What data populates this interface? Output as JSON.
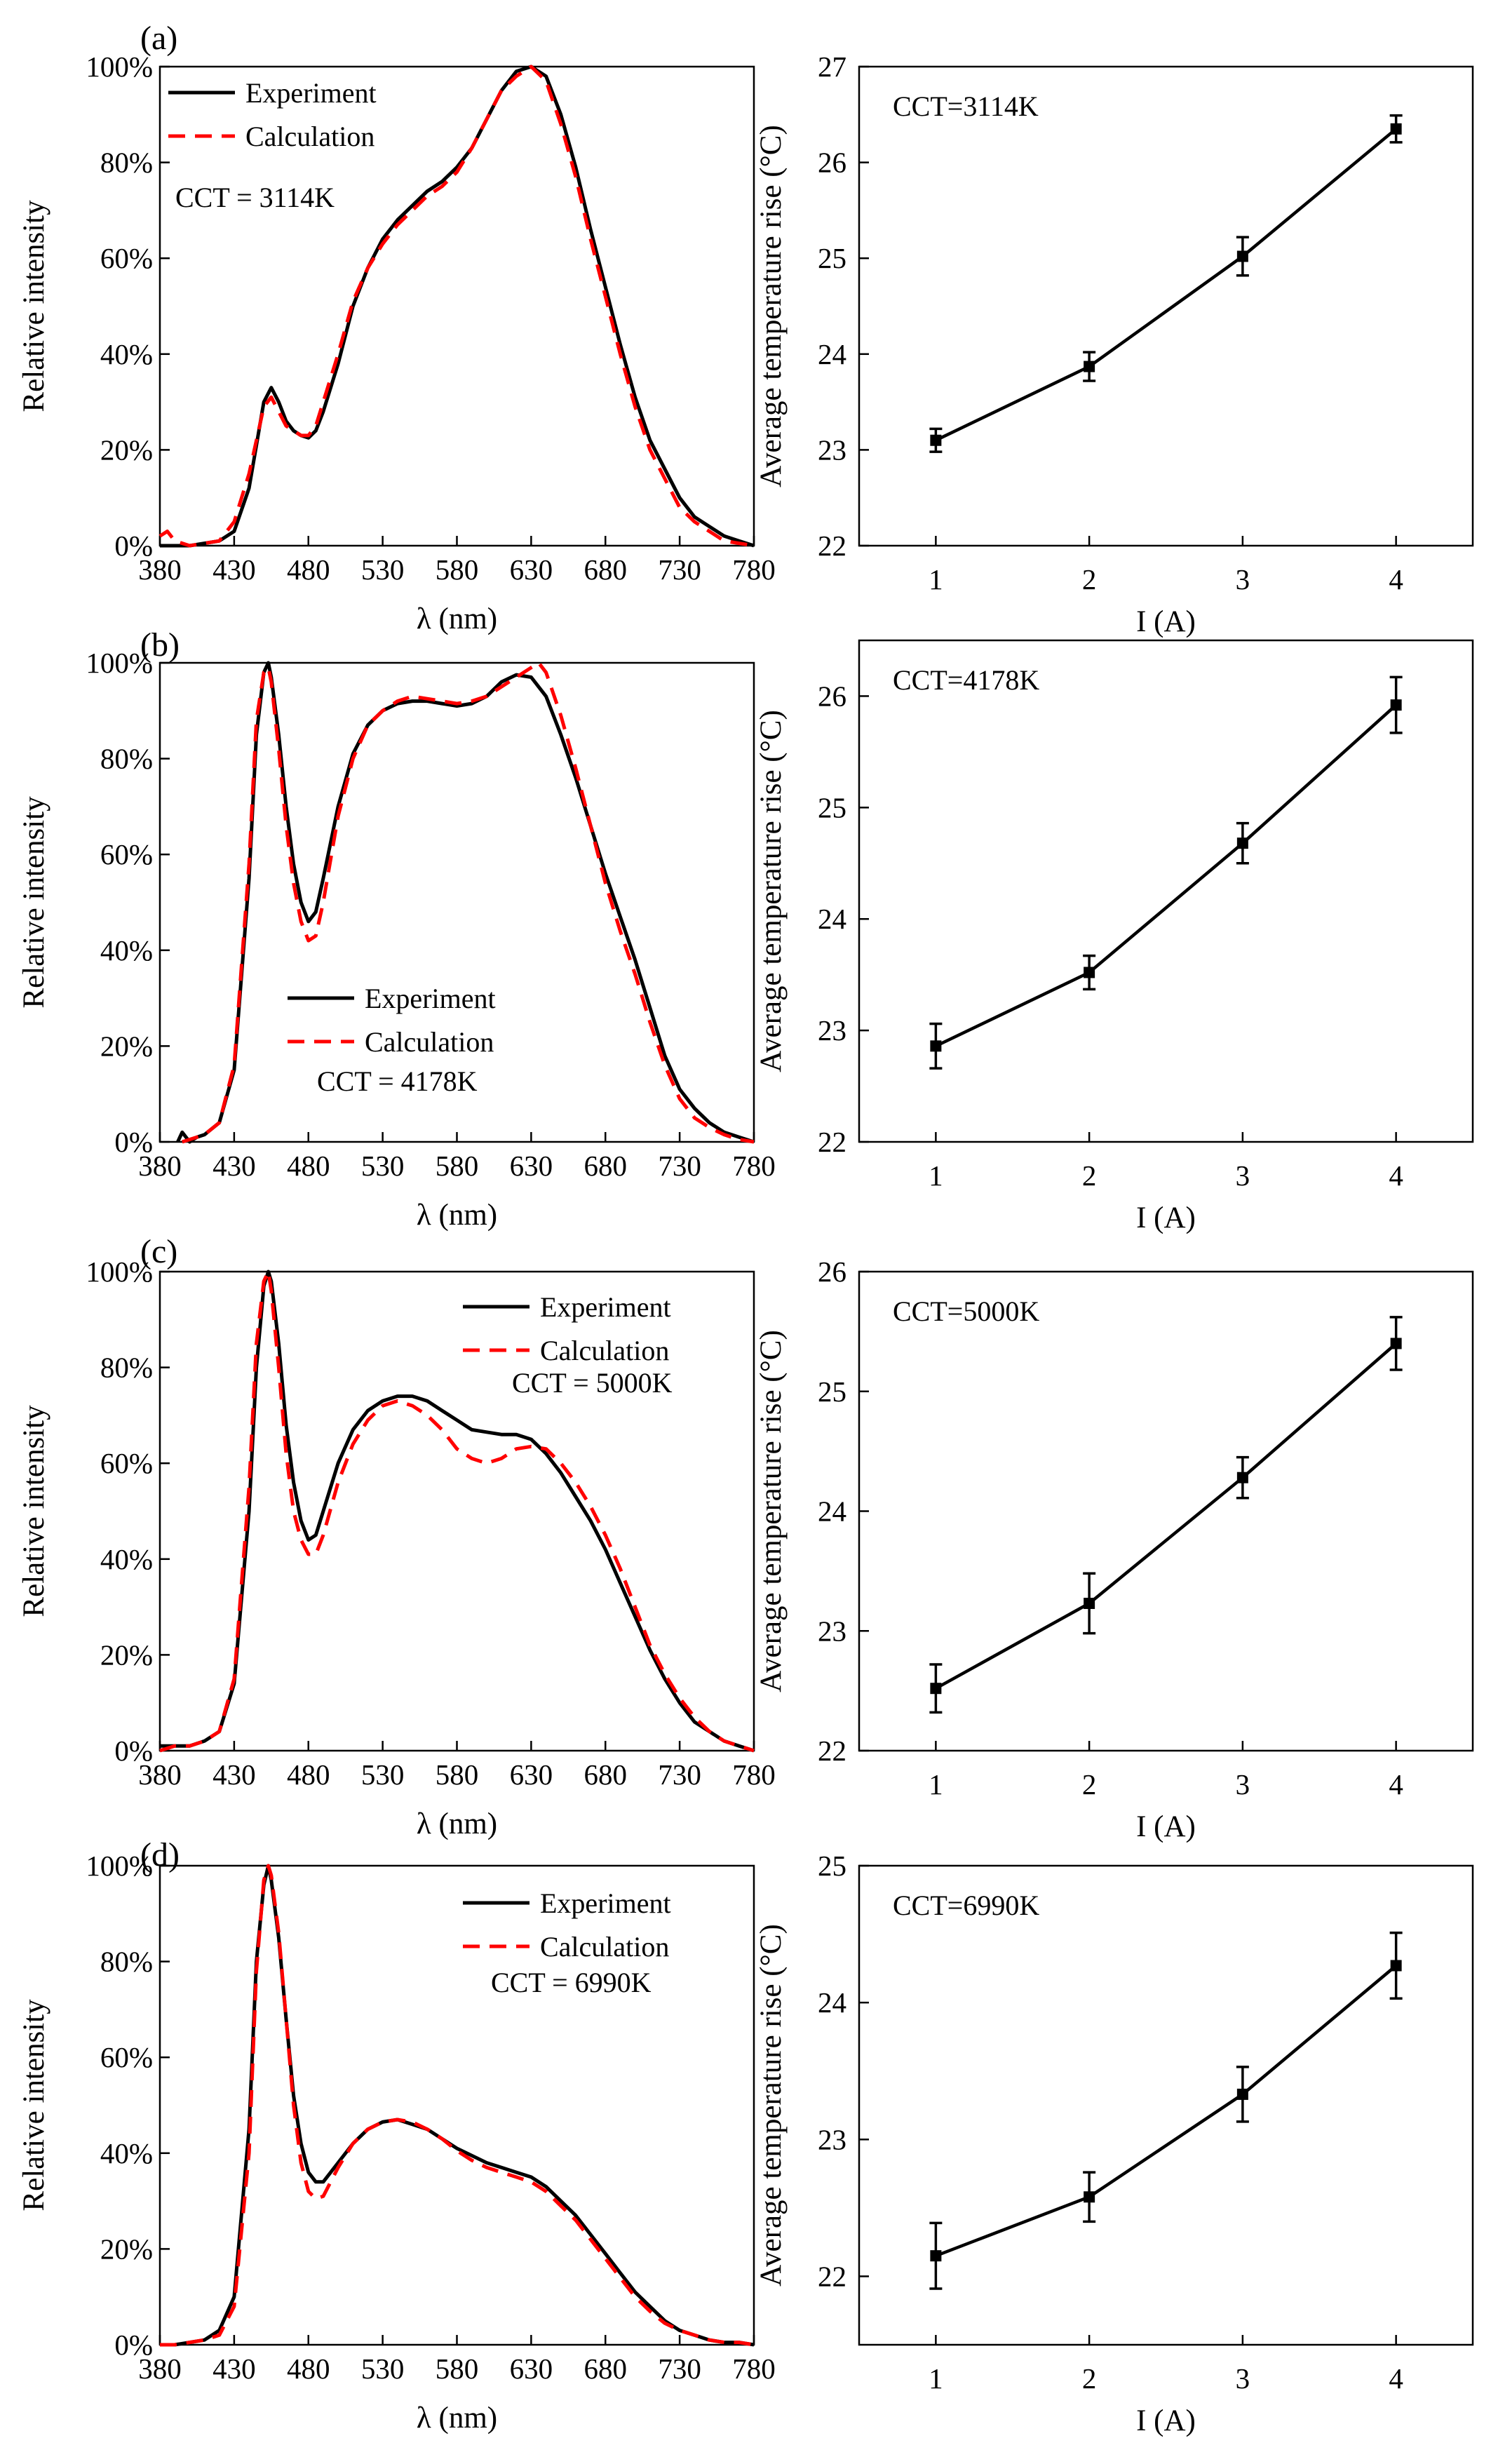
{
  "colors": {
    "experiment": "#000000",
    "calculation": "#ff0000",
    "temperature": "#000000"
  },
  "chart_data": [
    {
      "type": "line",
      "panel_label": "(a)",
      "xlabel": "λ (nm)",
      "ylabel": "Relative intensity",
      "xlim": [
        380,
        780
      ],
      "ylim": [
        0,
        100
      ],
      "xticks": [
        380,
        430,
        480,
        530,
        580,
        630,
        680,
        730,
        780
      ],
      "yticks": [
        "0%",
        "20%",
        "40%",
        "60%",
        "80%",
        "100%"
      ],
      "legend": {
        "placement": "top-left",
        "experiment": "Experiment",
        "calculation": "Calculation"
      },
      "annotation": "CCT = 3114K",
      "series": [
        {
          "name": "Experiment",
          "style": "solid",
          "x": [
            380,
            400,
            410,
            420,
            430,
            440,
            450,
            455,
            460,
            465,
            470,
            475,
            480,
            485,
            490,
            500,
            510,
            520,
            530,
            540,
            550,
            560,
            570,
            580,
            590,
            600,
            610,
            620,
            630,
            640,
            650,
            660,
            670,
            680,
            690,
            700,
            710,
            720,
            730,
            740,
            750,
            760,
            770,
            780
          ],
          "values": [
            0,
            0,
            0.5,
            1,
            3,
            12,
            30,
            33,
            30,
            26,
            24,
            23,
            22.5,
            24,
            28,
            38,
            50,
            58,
            64,
            68,
            71,
            74,
            76,
            79,
            83,
            89,
            95,
            99,
            100,
            98,
            90,
            79,
            66,
            54,
            42,
            31,
            22,
            16,
            10,
            6,
            4,
            2,
            1,
            0
          ]
        },
        {
          "name": "Calculation",
          "style": "dashed",
          "x": [
            380,
            385,
            390,
            400,
            410,
            420,
            430,
            440,
            450,
            455,
            460,
            465,
            470,
            475,
            480,
            485,
            490,
            500,
            510,
            520,
            530,
            540,
            550,
            560,
            570,
            580,
            590,
            600,
            610,
            620,
            630,
            640,
            650,
            660,
            670,
            680,
            690,
            700,
            710,
            720,
            730,
            740,
            750,
            760,
            770,
            780
          ],
          "values": [
            2,
            3,
            1,
            0,
            0.5,
            1,
            5,
            15,
            29,
            31,
            28,
            25,
            24,
            23,
            23,
            25,
            30,
            40,
            51,
            58,
            63,
            67,
            70,
            73,
            75,
            78,
            83,
            89,
            95,
            98,
            100,
            97,
            88,
            77,
            64,
            52,
            40,
            29,
            20,
            14,
            8,
            5,
            3,
            1,
            0.5,
            0
          ]
        }
      ]
    },
    {
      "type": "line",
      "title": "",
      "xlabel": "I (A)",
      "ylabel": "Average temperature rise (°C)",
      "xlim": [
        0.5,
        4.5
      ],
      "ylim": [
        22,
        27
      ],
      "xticks": [
        1,
        2,
        3,
        4
      ],
      "yticks": [
        22,
        23,
        24,
        25,
        26,
        27
      ],
      "annotation": "CCT=3114K",
      "series": [
        {
          "name": "Average temperature rise",
          "x": [
            1,
            2,
            3,
            4
          ],
          "values": [
            23.1,
            23.87,
            25.02,
            26.35
          ],
          "errors": [
            0.12,
            0.15,
            0.2,
            0.14
          ]
        }
      ]
    },
    {
      "type": "line",
      "panel_label": "(b)",
      "xlabel": "λ (nm)",
      "ylabel": "Relative intensity",
      "xlim": [
        380,
        780
      ],
      "ylim": [
        0,
        100
      ],
      "xticks": [
        380,
        430,
        480,
        530,
        580,
        630,
        680,
        730,
        780
      ],
      "yticks": [
        "0%",
        "20%",
        "40%",
        "60%",
        "80%",
        "100%"
      ],
      "legend": {
        "placement": "center",
        "experiment": "Experiment",
        "calculation": "Calculation"
      },
      "annotation": "CCT = 4178K",
      "series": [
        {
          "name": "Experiment",
          "style": "solid",
          "x": [
            392,
            395,
            400,
            405,
            410,
            420,
            430,
            440,
            445,
            450,
            453,
            455,
            460,
            465,
            470,
            475,
            480,
            485,
            490,
            500,
            510,
            520,
            530,
            540,
            550,
            560,
            570,
            580,
            590,
            600,
            610,
            620,
            630,
            640,
            650,
            660,
            670,
            680,
            690,
            700,
            710,
            720,
            730,
            740,
            750,
            760,
            770,
            780
          ],
          "values": [
            0,
            2,
            0,
            1,
            1.5,
            4,
            15,
            55,
            85,
            98,
            100,
            97,
            85,
            70,
            58,
            50,
            46,
            48,
            55,
            70,
            81,
            87,
            90,
            91.5,
            92,
            92,
            91.5,
            91,
            91.5,
            93,
            96,
            97.5,
            97,
            93,
            85,
            76,
            66,
            56,
            47,
            38,
            28,
            18,
            11,
            7,
            4,
            2,
            1,
            0
          ]
        },
        {
          "name": "Calculation",
          "style": "dashed",
          "x": [
            395,
            400,
            405,
            410,
            420,
            430,
            440,
            445,
            450,
            453,
            455,
            460,
            465,
            470,
            475,
            480,
            485,
            490,
            500,
            510,
            520,
            530,
            540,
            550,
            560,
            570,
            580,
            590,
            600,
            610,
            620,
            630,
            635,
            640,
            650,
            660,
            670,
            680,
            690,
            700,
            710,
            720,
            730,
            740,
            750,
            760,
            770,
            780
          ],
          "values": [
            0,
            0.5,
            1,
            1.5,
            4,
            16,
            58,
            88,
            98,
            99,
            96,
            82,
            66,
            54,
            46,
            42,
            43,
            50,
            68,
            80,
            87,
            90,
            92,
            93,
            92.5,
            92,
            91.5,
            92,
            93,
            95,
            97,
            99,
            100,
            98,
            89,
            78,
            66,
            54,
            44,
            35,
            25,
            16,
            9,
            5,
            3,
            1.5,
            0.5,
            0
          ]
        }
      ]
    },
    {
      "type": "line",
      "title": "",
      "xlabel": "I (A)",
      "ylabel": "Average temperature rise (°C)",
      "xlim": [
        0.5,
        4.5
      ],
      "ylim": [
        22,
        26.5
      ],
      "xticks": [
        1,
        2,
        3,
        4
      ],
      "yticks": [
        22,
        23,
        24,
        25,
        26
      ],
      "annotation": "CCT=4178K",
      "series": [
        {
          "name": "Average temperature rise",
          "x": [
            1,
            2,
            3,
            4
          ],
          "values": [
            22.86,
            23.52,
            24.68,
            25.92
          ],
          "errors": [
            0.2,
            0.15,
            0.18,
            0.25
          ]
        }
      ]
    },
    {
      "type": "line",
      "panel_label": "(c)",
      "xlabel": "λ (nm)",
      "ylabel": "Relative intensity",
      "xlim": [
        380,
        780
      ],
      "ylim": [
        0,
        100
      ],
      "xticks": [
        380,
        430,
        480,
        530,
        580,
        630,
        680,
        730,
        780
      ],
      "yticks": [
        "0%",
        "20%",
        "40%",
        "60%",
        "80%",
        "100%"
      ],
      "legend": {
        "placement": "top-right",
        "experiment": "Experiment",
        "calculation": "Calculation"
      },
      "annotation": "CCT = 5000K",
      "series": [
        {
          "name": "Experiment",
          "style": "solid",
          "x": [
            380,
            390,
            400,
            410,
            420,
            430,
            440,
            445,
            450,
            453,
            455,
            460,
            465,
            470,
            475,
            480,
            485,
            490,
            500,
            510,
            520,
            530,
            540,
            550,
            560,
            570,
            580,
            590,
            600,
            610,
            620,
            630,
            640,
            650,
            660,
            670,
            680,
            690,
            700,
            710,
            720,
            730,
            740,
            750,
            760,
            770,
            780
          ],
          "values": [
            1,
            1,
            1,
            2,
            4,
            14,
            50,
            80,
            97,
            100,
            98,
            85,
            68,
            56,
            48,
            44,
            45,
            50,
            60,
            67,
            71,
            73,
            74,
            74,
            73,
            71,
            69,
            67,
            66.5,
            66,
            66,
            65,
            62,
            58,
            53,
            48,
            42,
            35,
            28,
            21,
            15,
            10,
            6,
            4,
            2,
            1,
            0
          ]
        },
        {
          "name": "Calculation",
          "style": "dashed",
          "x": [
            380,
            390,
            400,
            410,
            420,
            430,
            440,
            445,
            450,
            453,
            455,
            460,
            465,
            470,
            475,
            480,
            485,
            490,
            500,
            510,
            520,
            530,
            540,
            550,
            560,
            570,
            580,
            590,
            600,
            610,
            620,
            630,
            640,
            650,
            660,
            670,
            680,
            690,
            700,
            710,
            720,
            730,
            740,
            750,
            760,
            770,
            780
          ],
          "values": [
            0,
            1,
            1,
            2,
            4,
            15,
            55,
            85,
            98,
            100,
            96,
            80,
            62,
            50,
            44,
            41,
            41,
            45,
            56,
            64,
            69,
            72,
            73,
            72,
            70,
            67,
            63,
            61,
            60,
            61,
            63,
            63.5,
            63,
            60,
            56,
            51,
            45,
            38,
            30,
            22,
            16,
            11,
            7,
            4,
            2,
            1,
            0
          ]
        }
      ]
    },
    {
      "type": "line",
      "title": "",
      "xlabel": "I (A)",
      "ylabel": "Average temperature rise (°C)",
      "xlim": [
        0.5,
        4.5
      ],
      "ylim": [
        22,
        26
      ],
      "xticks": [
        1,
        2,
        3,
        4
      ],
      "yticks": [
        22,
        23,
        24,
        25,
        26
      ],
      "annotation": "CCT=5000K",
      "series": [
        {
          "name": "Average temperature rise",
          "x": [
            1,
            2,
            3,
            4
          ],
          "values": [
            22.52,
            23.23,
            24.28,
            25.4
          ],
          "errors": [
            0.2,
            0.25,
            0.17,
            0.22
          ]
        }
      ]
    },
    {
      "type": "line",
      "panel_label": "(d)",
      "xlabel": "λ (nm)",
      "ylabel": "Relative intensity",
      "xlim": [
        380,
        780
      ],
      "ylim": [
        0,
        100
      ],
      "xticks": [
        380,
        430,
        480,
        530,
        580,
        630,
        680,
        730,
        780
      ],
      "yticks": [
        "0%",
        "20%",
        "40%",
        "60%",
        "80%",
        "100%"
      ],
      "legend": {
        "placement": "top-right",
        "experiment": "Experiment",
        "calculation": "Calculation"
      },
      "annotation": "CCT = 6990K",
      "series": [
        {
          "name": "Experiment",
          "style": "solid",
          "x": [
            380,
            390,
            400,
            410,
            420,
            430,
            440,
            445,
            450,
            453,
            455,
            460,
            465,
            470,
            475,
            480,
            485,
            490,
            500,
            510,
            520,
            530,
            540,
            550,
            560,
            570,
            580,
            590,
            600,
            610,
            620,
            630,
            640,
            650,
            660,
            670,
            680,
            690,
            700,
            710,
            720,
            730,
            740,
            750,
            760,
            770,
            780
          ],
          "values": [
            0,
            0,
            0.5,
            1,
            3,
            10,
            45,
            80,
            96,
            100,
            97,
            85,
            68,
            52,
            42,
            36,
            34,
            34,
            38,
            42,
            45,
            46.5,
            47,
            46,
            45,
            43,
            41,
            39.5,
            38,
            37,
            36,
            35,
            33,
            30,
            27,
            23,
            19,
            15,
            11,
            8,
            5,
            3,
            2,
            1,
            0.5,
            0.5,
            0
          ]
        },
        {
          "name": "Calculation",
          "style": "dashed",
          "x": [
            380,
            390,
            400,
            410,
            420,
            430,
            440,
            445,
            450,
            453,
            455,
            460,
            465,
            470,
            475,
            480,
            485,
            490,
            500,
            510,
            520,
            530,
            540,
            550,
            560,
            570,
            580,
            590,
            600,
            610,
            620,
            630,
            640,
            650,
            660,
            670,
            680,
            690,
            700,
            710,
            720,
            730,
            740,
            750,
            760,
            770,
            780
          ],
          "values": [
            0,
            0,
            0.5,
            1,
            2,
            8,
            40,
            78,
            97,
            100,
            98,
            86,
            68,
            50,
            38,
            32,
            30.5,
            31,
            37,
            42,
            45,
            46.5,
            47,
            46.5,
            45,
            43,
            40.5,
            38.5,
            37,
            36,
            35,
            34,
            32,
            29,
            26,
            22,
            18,
            14,
            10,
            7,
            4.5,
            3,
            2,
            1,
            0.5,
            0.5,
            0
          ]
        }
      ]
    },
    {
      "type": "line",
      "title": "",
      "xlabel": "I (A)",
      "ylabel": "Average temperature rise (°C)",
      "xlim": [
        0.5,
        4.5
      ],
      "ylim": [
        21.5,
        25
      ],
      "xticks": [
        1,
        2,
        3,
        4
      ],
      "yticks": [
        22,
        23,
        24,
        25
      ],
      "annotation": "CCT=6990K",
      "series": [
        {
          "name": "Average temperature rise",
          "x": [
            1,
            2,
            3,
            4
          ],
          "values": [
            22.15,
            22.58,
            23.33,
            24.27
          ],
          "errors": [
            0.24,
            0.18,
            0.2,
            0.24
          ]
        }
      ]
    }
  ]
}
